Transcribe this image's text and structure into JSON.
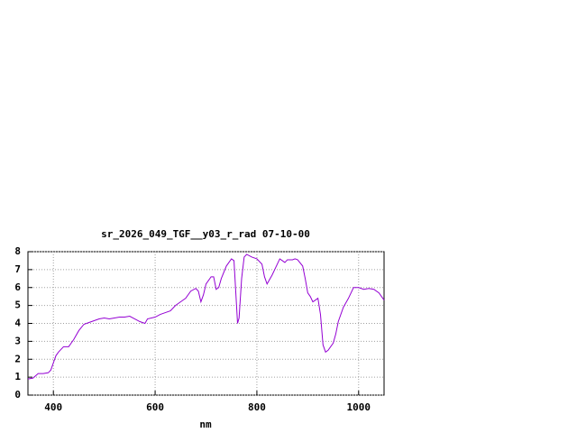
{
  "chart_data": {
    "type": "line",
    "title": "sr_2026_049_TGF__y03_r_rad 07-10-00",
    "x_label": "nm",
    "x": [
      350,
      360,
      370,
      380,
      390,
      395,
      400,
      405,
      410,
      420,
      430,
      440,
      450,
      460,
      470,
      480,
      490,
      500,
      510,
      520,
      530,
      540,
      550,
      560,
      570,
      580,
      585,
      600,
      610,
      620,
      630,
      640,
      650,
      660,
      670,
      680,
      685,
      690,
      695,
      700,
      710,
      715,
      720,
      725,
      730,
      740,
      750,
      755,
      760,
      762,
      765,
      770,
      775,
      780,
      790,
      800,
      810,
      815,
      820,
      830,
      840,
      845,
      850,
      855,
      860,
      870,
      875,
      880,
      890,
      895,
      900,
      905,
      910,
      915,
      920,
      925,
      930,
      935,
      940,
      950,
      955,
      960,
      970,
      980,
      990,
      1000,
      1010,
      1020,
      1030,
      1040,
      1050
    ],
    "series": [
      {
        "color": "#9400d3",
        "values": [
          0.9,
          0.95,
          1.2,
          1.2,
          1.25,
          1.4,
          1.8,
          2.2,
          2.4,
          2.7,
          2.7,
          3.1,
          3.6,
          3.95,
          4.05,
          4.15,
          4.25,
          4.3,
          4.25,
          4.3,
          4.35,
          4.35,
          4.4,
          4.25,
          4.1,
          4.0,
          4.25,
          4.35,
          4.5,
          4.6,
          4.7,
          5.0,
          5.2,
          5.4,
          5.8,
          5.95,
          5.8,
          5.2,
          5.6,
          6.2,
          6.6,
          6.6,
          5.9,
          6.0,
          6.5,
          7.2,
          7.6,
          7.5,
          5.0,
          4.0,
          4.3,
          6.5,
          7.7,
          7.85,
          7.7,
          7.6,
          7.3,
          6.6,
          6.2,
          6.7,
          7.3,
          7.6,
          7.5,
          7.4,
          7.55,
          7.55,
          7.6,
          7.55,
          7.2,
          6.5,
          5.7,
          5.5,
          5.2,
          5.3,
          5.4,
          4.5,
          2.8,
          2.4,
          2.5,
          2.9,
          3.4,
          4.1,
          4.9,
          5.4,
          6.0,
          6.0,
          5.9,
          5.95,
          5.9,
          5.7,
          5.3
        ]
      }
    ],
    "xlim": [
      350,
      1050
    ],
    "xticks": [
      400,
      600,
      800,
      1000
    ],
    "ylim": [
      0,
      8
    ],
    "yticks": [
      0,
      1,
      2,
      3,
      4,
      5,
      6,
      7,
      8
    ],
    "grid": true
  }
}
